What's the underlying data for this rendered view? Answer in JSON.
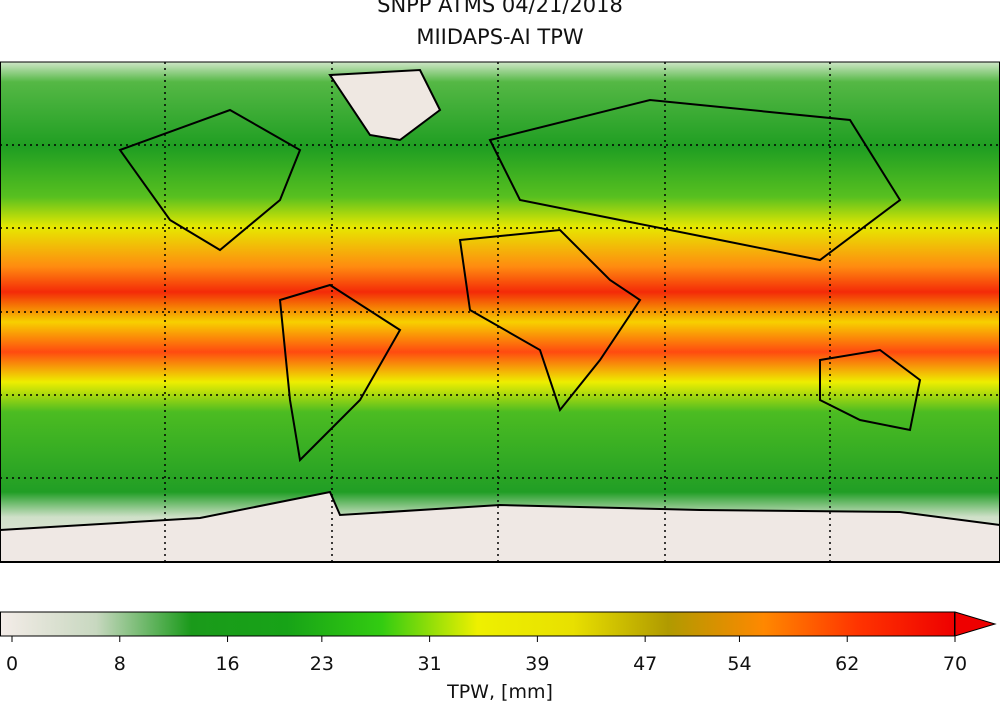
{
  "title_lines": [
    "SNPP ATMS 04/21/2018",
    "MIIDAPS-AI TPW"
  ],
  "colorbar": {
    "label": "TPW, [mm]",
    "lim": [
      0,
      70
    ],
    "ticks": [
      0,
      8,
      16,
      23,
      31,
      39,
      47,
      54,
      62,
      70
    ],
    "colors": [
      "#f4ece8",
      "#c8d8c0",
      "#1a9a1a",
      "#17a317",
      "#33cc11",
      "#eef000",
      "#e8e000",
      "#b09a00",
      "#ff8800",
      "#ff3300",
      "#ee0000"
    ]
  }
}
